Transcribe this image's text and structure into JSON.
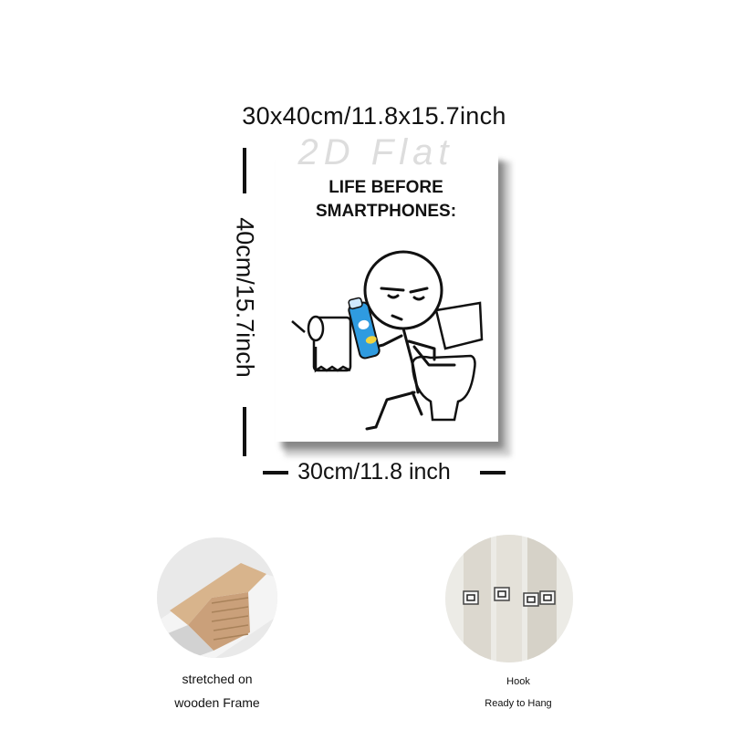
{
  "dimensions": {
    "overall": "30x40cm/11.8x15.7inch",
    "height": "40cm/15.7inch",
    "width": "30cm/11.8 inch"
  },
  "poster": {
    "title_line1": "LIFE BEFORE",
    "title_line2": "SMARTPHONES:",
    "watermark": "2D Flat"
  },
  "features": [
    {
      "caption_line1": "stretched on",
      "caption_line2": "wooden Frame",
      "icon": "wooden-frame-photo"
    },
    {
      "caption_line1": "Hook",
      "caption_line2": "Ready to Hang",
      "icon": "hook-photo"
    }
  ],
  "colors": {
    "spray_can": "#2f9be0",
    "ink": "#111111"
  }
}
